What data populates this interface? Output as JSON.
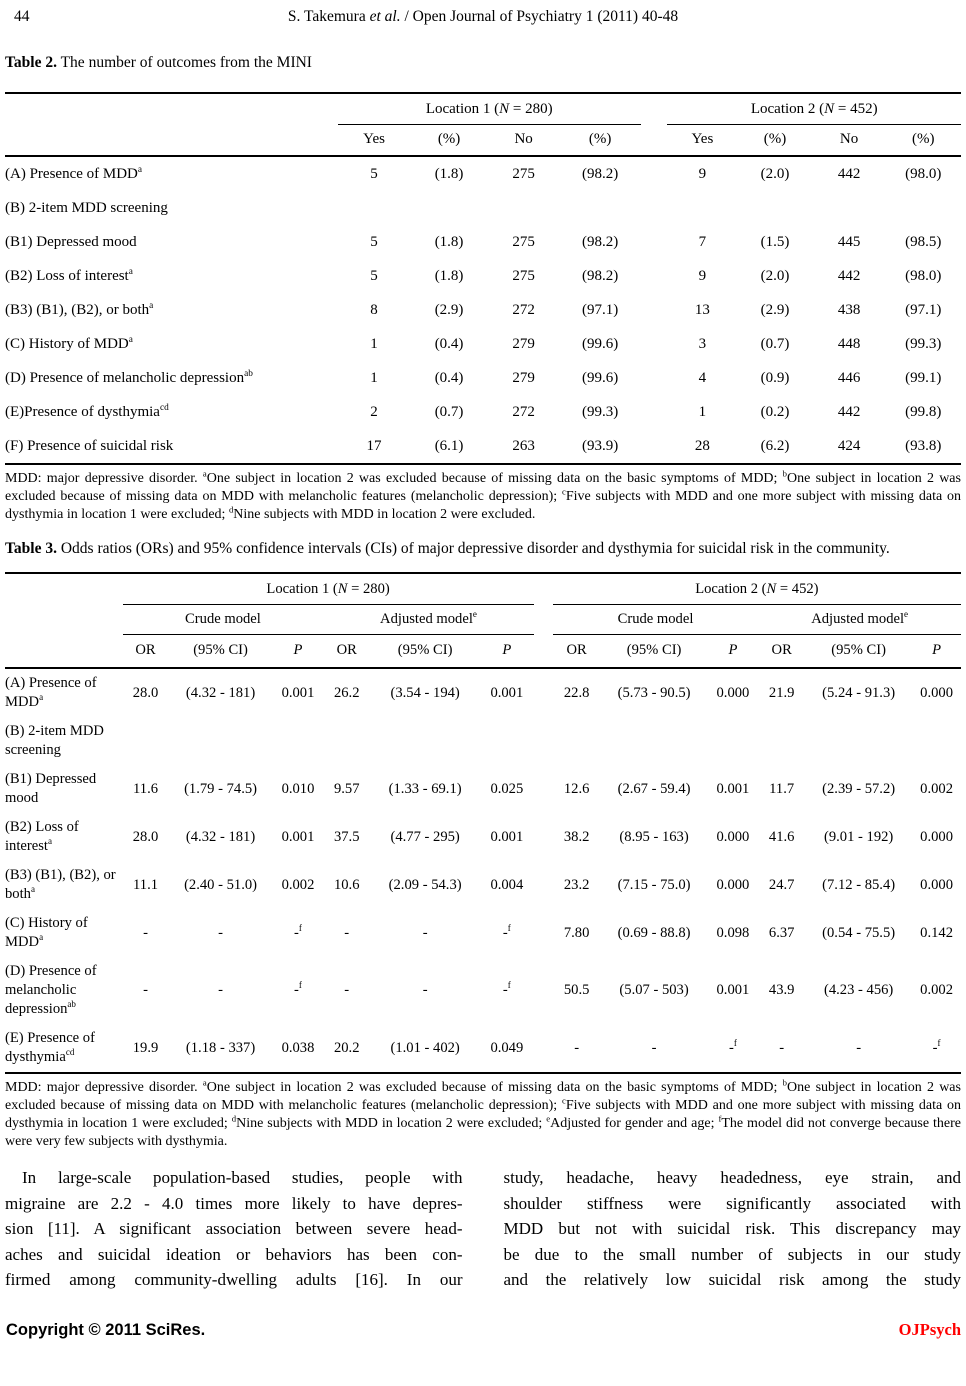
{
  "page": {
    "page_number": "44",
    "running_head": [
      {
        "t": "S. Takemura "
      },
      {
        "t": "et al.",
        "i": 1
      },
      {
        "t": " / Open Journal of Psychiatry 1 (2011) 40-48"
      }
    ]
  },
  "table2": {
    "caption_label": "Table 2.",
    "caption_text": "The number of outcomes from the MINI",
    "groups": [
      [
        {
          "t": "Location 1 ("
        },
        {
          "t": "N",
          "i": 1
        },
        {
          "t": " = 280)"
        }
      ],
      [
        {
          "t": "Location 2 ("
        },
        {
          "t": "N",
          "i": 1
        },
        {
          "t": " = 452)"
        }
      ]
    ],
    "sub_headers": [
      "Yes",
      "(%)",
      "No",
      "(%)",
      "Yes",
      "(%)",
      "No",
      "(%)"
    ],
    "rows": [
      {
        "label": "(A) Presence of MDD^a",
        "values": [
          "5",
          "(1.8)",
          "275",
          "(98.2)",
          "9",
          "(2.0)",
          "442",
          "(98.0)"
        ]
      },
      {
        "label": "(B) 2-item MDD screening",
        "values": [
          "",
          "",
          "",
          "",
          "",
          "",
          "",
          ""
        ]
      },
      {
        "label": "(B1) Depressed mood",
        "values": [
          "5",
          "(1.8)",
          "275",
          "(98.2)",
          "7",
          "(1.5)",
          "445",
          "(98.5)"
        ]
      },
      {
        "label": "(B2) Loss of interest^a",
        "values": [
          "5",
          "(1.8)",
          "275",
          "(98.2)",
          "9",
          "(2.0)",
          "442",
          "(98.0)"
        ]
      },
      {
        "label": "(B3) (B1), (B2), or both^a",
        "values": [
          "8",
          "(2.9)",
          "272",
          "(97.1)",
          "13",
          "(2.9)",
          "438",
          "(97.1)"
        ]
      },
      {
        "label": "(C) History of MDD^a",
        "values": [
          "1",
          "(0.4)",
          "279",
          "(99.6)",
          "3",
          "(0.7)",
          "448",
          "(99.3)"
        ]
      },
      {
        "label": "(D) Presence of melancholic depression^ab",
        "values": [
          "1",
          "(0.4)",
          "279",
          "(99.6)",
          "4",
          "(0.9)",
          "446",
          "(99.1)"
        ]
      },
      {
        "label": "(E)Presence of dysthymia^cd",
        "values": [
          "2",
          "(0.7)",
          "272",
          "(99.3)",
          "1",
          "(0.2)",
          "442",
          "(99.8)"
        ]
      },
      {
        "label": "(F) Presence of suicidal risk",
        "values": [
          "17",
          "(6.1)",
          "263",
          "(93.9)",
          "28",
          "(6.2)",
          "424",
          "(93.8)"
        ]
      }
    ],
    "footnote": [
      {
        "t": "MDD: major depressive disorder. "
      },
      {
        "t": "a",
        "s": 1
      },
      {
        "t": "One subject in location 2 was excluded because of missing data on the basic symptoms of MDD; "
      },
      {
        "t": "b",
        "s": 1
      },
      {
        "t": "One subject in location 2 was excluded because of missing data on MDD with melancholic features (melancholic depression); "
      },
      {
        "t": "c",
        "s": 1
      },
      {
        "t": "Five subjects with MDD and one more subject with missing data on dysthymia in location 1 were excluded; "
      },
      {
        "t": "d",
        "s": 1
      },
      {
        "t": "Nine subjects with MDD in location 2 were excluded."
      }
    ]
  },
  "table3": {
    "caption_label": "Table 3.",
    "caption_text": "Odds ratios (ORs) and 95% confidence intervals (CIs) of major depressive disorder and dysthymia for suicidal risk in the community.",
    "groups": [
      [
        {
          "t": "Location 1 ("
        },
        {
          "t": "N",
          "i": 1
        },
        {
          "t": " = 280)"
        }
      ],
      [
        {
          "t": "Location 2 ("
        },
        {
          "t": "N",
          "i": 1
        },
        {
          "t": " = 452)"
        }
      ]
    ],
    "model_headers": [
      [
        {
          "t": "Crude model"
        }
      ],
      [
        {
          "t": "Adjusted model"
        },
        {
          "t": "e",
          "s": 1
        }
      ]
    ],
    "stat_headers": [
      [
        {
          "t": "OR"
        }
      ],
      [
        {
          "t": "(95% CI)"
        }
      ],
      [
        {
          "t": "P",
          "i": 1
        }
      ]
    ],
    "rows": [
      {
        "label": "(A) Presence of MDD^a",
        "values": [
          "28.0",
          "(4.32 - 181)",
          "0.001",
          "26.2",
          "(3.54 - 194)",
          "0.001",
          "22.8",
          "(5.73 - 90.5)",
          "0.000",
          "21.9",
          "(5.24 - 91.3)",
          "0.000"
        ]
      },
      {
        "label": "(B) 2-item MDD screening",
        "values": [
          "",
          "",
          "",
          "",
          "",
          "",
          "",
          "",
          "",
          "",
          "",
          ""
        ]
      },
      {
        "label": "(B1) Depressed mood",
        "values": [
          "11.6",
          "(1.79 - 74.5)",
          "0.010",
          "9.57",
          "(1.33 - 69.1)",
          "0.025",
          "12.6",
          "(2.67 - 59.4)",
          "0.001",
          "11.7",
          "(2.39 - 57.2)",
          "0.002"
        ]
      },
      {
        "label": "(B2) Loss of interest^a",
        "values": [
          "28.0",
          "(4.32 - 181)",
          "0.001",
          "37.5",
          "(4.77 - 295)",
          "0.001",
          "38.2",
          "(8.95 - 163)",
          "0.000",
          "41.6",
          "(9.01 - 192)",
          "0.000"
        ]
      },
      {
        "label": "(B3) (B1), (B2), or both^a",
        "values": [
          "11.1",
          "(2.40 - 51.0)",
          "0.002",
          "10.6",
          "(2.09 - 54.3)",
          "0.004",
          "23.2",
          "(7.15 - 75.0)",
          "0.000",
          "24.7",
          "(7.12 - 85.4)",
          "0.000"
        ]
      },
      {
        "label": "(C) History of MDD^a",
        "values": [
          "-",
          "-",
          "-^f",
          "-",
          "-",
          "-^f",
          "7.80",
          "(0.69 - 88.8)",
          "0.098",
          "6.37",
          "(0.54 - 75.5)",
          "0.142"
        ]
      },
      {
        "label": "(D) Presence of melancholic depression^ab",
        "values": [
          "-",
          "-",
          "-^f",
          "-",
          "-",
          "-^f",
          "50.5",
          "(5.07 - 503)",
          "0.001",
          "43.9",
          "(4.23 - 456)",
          "0.002"
        ]
      },
      {
        "label": "(E) Presence of dysthymia^cd",
        "values": [
          "19.9",
          "(1.18 - 337)",
          "0.038",
          "20.2",
          "(1.01 - 402)",
          "0.049",
          "-",
          "-",
          "-^f",
          "-",
          "-",
          "-^f"
        ]
      }
    ],
    "footnote": [
      {
        "t": "MDD: major depressive disorder. "
      },
      {
        "t": "a",
        "s": 1
      },
      {
        "t": "One subject in location 2 was excluded because of missing data on the basic symptoms of MDD; "
      },
      {
        "t": "b",
        "s": 1
      },
      {
        "t": "One subject in location 2 was excluded because of missing data on MDD with melancholic features (melancholic depression); "
      },
      {
        "t": "c",
        "s": 1
      },
      {
        "t": "Five subjects with MDD and one more subject with missing data on dysthymia in location 1 were excluded; "
      },
      {
        "t": "d",
        "s": 1
      },
      {
        "t": "Nine subjects with MDD in location 2 were excluded; "
      },
      {
        "t": "e",
        "s": 1
      },
      {
        "t": "Adjusted for gender and age; "
      },
      {
        "t": "f",
        "s": 1
      },
      {
        "t": "The model did not converge because there were very few subjects with dysthymia."
      }
    ]
  },
  "body_text": {
    "left_lines": [
      "In large-scale population-based studies, people with",
      "migraine are 2.2 - 4.0 times more likely to have depres-",
      "sion [11]. A significant association between severe head-",
      "aches and suicidal ideation or behaviors has been con-",
      "firmed among community-dwelling adults [16]. In our"
    ],
    "right_lines": [
      "study, headache, heavy headedness, eye strain, and",
      "shoulder stiffness were significantly associated with",
      "MDD but not with suicidal risk. This discrepancy may",
      "be due to the small number of subjects in our study",
      "and the relatively low suicidal risk among the study"
    ]
  },
  "footer": {
    "copyright": "Copyright © 2011 SciRes.",
    "journal": "OJPsych",
    "journal_color": "#ff0000"
  }
}
